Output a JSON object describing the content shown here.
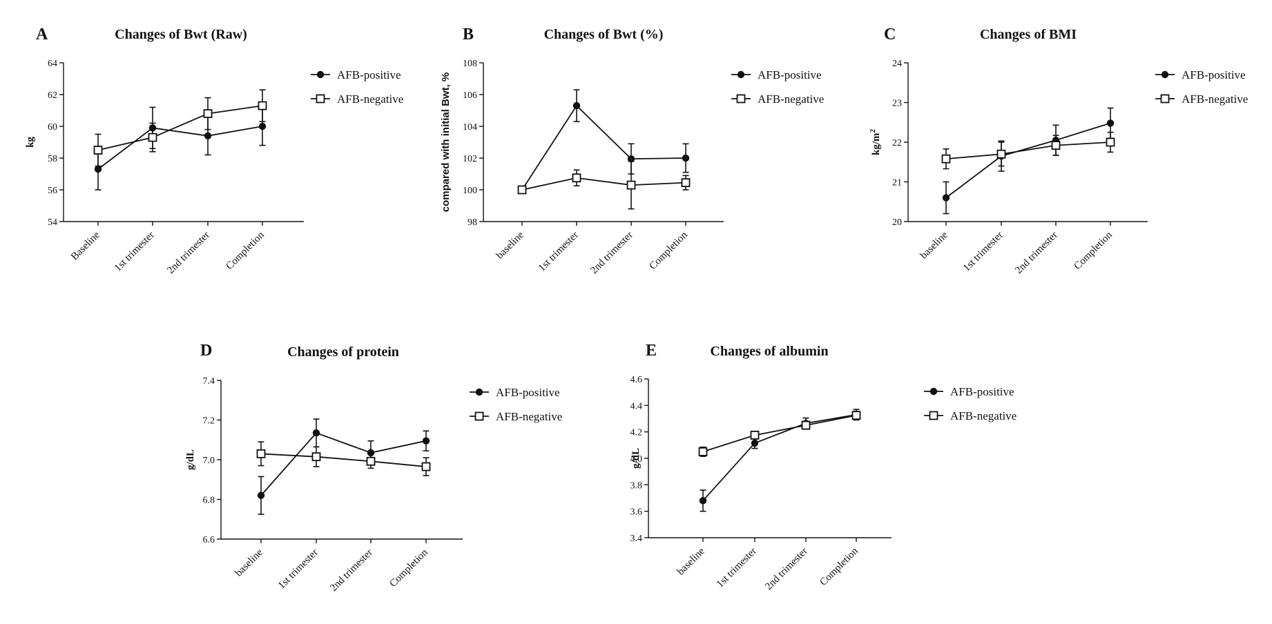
{
  "chart_data": [
    {
      "id": "A",
      "type": "line",
      "letter": "A",
      "title": "Changes of Bwt (Raw)",
      "ylabel": "kg",
      "categories": [
        "Baseline",
        "1st trimester",
        "2nd trimester",
        "Completion"
      ],
      "ylim": [
        54,
        64
      ],
      "yticks": [
        "54",
        "56",
        "58",
        "60",
        "62",
        "64"
      ],
      "series": [
        {
          "name": "AFB-positive",
          "marker": "filled-circle",
          "values": [
            57.3,
            59.9,
            59.4,
            60.0
          ],
          "errors": [
            1.3,
            1.3,
            1.2,
            1.2
          ]
        },
        {
          "name": "AFB-negative",
          "marker": "open-square",
          "values": [
            58.5,
            59.3,
            60.8,
            61.3
          ],
          "errors": [
            1.0,
            0.9,
            1.0,
            1.0
          ]
        }
      ]
    },
    {
      "id": "B",
      "type": "line",
      "letter": "B",
      "title": "Changes of Bwt (%)",
      "ylabel": "compared with initial Bwt, %",
      "categories": [
        "baseline",
        "1st trimester",
        "2nd trimester",
        "Completion"
      ],
      "ylim": [
        98,
        108
      ],
      "yticks": [
        "98",
        "100",
        "102",
        "104",
        "106",
        "108"
      ],
      "series": [
        {
          "name": "AFB-positive",
          "marker": "filled-circle",
          "values": [
            100.0,
            105.3,
            101.95,
            102.0
          ],
          "errors": [
            0,
            1.0,
            0.95,
            0.9
          ]
        },
        {
          "name": "AFB-negative",
          "marker": "open-square",
          "values": [
            100.0,
            100.75,
            100.3,
            100.45
          ],
          "errors": [
            0,
            0.5,
            1.5,
            0.45
          ]
        }
      ]
    },
    {
      "id": "C",
      "type": "line",
      "letter": "C",
      "title": "Changes of BMI",
      "ylabel": "kg/m",
      "ylabel_sup": "2",
      "categories": [
        "baseline",
        "1st trimester",
        "2nd trimester",
        "Completion"
      ],
      "ylim": [
        20,
        24
      ],
      "yticks": [
        "20",
        "21",
        "22",
        "23",
        "24"
      ],
      "series": [
        {
          "name": "AFB-positive",
          "marker": "filled-circle",
          "values": [
            20.6,
            21.65,
            22.05,
            22.48
          ],
          "errors": [
            0.4,
            0.38,
            0.38,
            0.38
          ]
        },
        {
          "name": "AFB-negative",
          "marker": "open-square",
          "values": [
            21.58,
            21.7,
            21.92,
            22.0
          ],
          "errors": [
            0.25,
            0.3,
            0.25,
            0.25
          ]
        }
      ]
    },
    {
      "id": "D",
      "type": "line",
      "letter": "D",
      "title": "Changes of protein",
      "ylabel": "g/dL",
      "categories": [
        "baseline",
        "1st trimester",
        "2nd trimester",
        "Completion"
      ],
      "ylim": [
        6.6,
        7.4
      ],
      "yticks": [
        "6.6",
        "6.8",
        "7.0",
        "7.2",
        "7.4"
      ],
      "series": [
        {
          "name": "AFB-positive",
          "marker": "filled-circle",
          "values": [
            6.82,
            7.135,
            7.035,
            7.095
          ],
          "errors": [
            0.095,
            0.07,
            0.06,
            0.05
          ]
        },
        {
          "name": "AFB-negative",
          "marker": "open-square",
          "values": [
            7.03,
            7.015,
            6.992,
            6.965
          ],
          "errors": [
            0.06,
            0.05,
            0.035,
            0.045
          ]
        }
      ]
    },
    {
      "id": "E",
      "type": "line",
      "letter": "E",
      "title": "Changes of albumin",
      "ylabel": "g/dL",
      "categories": [
        "baseline",
        "1st trimester",
        "2nd trimester",
        "Completion"
      ],
      "ylim": [
        3.4,
        4.6
      ],
      "yticks": [
        "3.4",
        "3.6",
        "3.8",
        "4.0",
        "4.2",
        "4.4",
        "4.6"
      ],
      "series": [
        {
          "name": "AFB-positive",
          "marker": "filled-circle",
          "values": [
            3.68,
            4.115,
            4.265,
            4.33
          ],
          "errors": [
            0.08,
            0.04,
            0.04,
            0.04
          ]
        },
        {
          "name": "AFB-negative",
          "marker": "open-square",
          "values": [
            4.05,
            4.175,
            4.25,
            4.325
          ],
          "errors": [
            0.035,
            0.025,
            0.03,
            0.03
          ]
        }
      ]
    }
  ]
}
